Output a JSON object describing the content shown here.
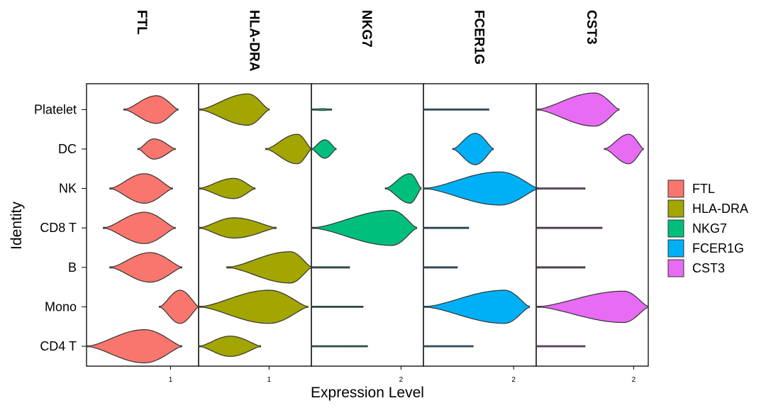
{
  "chart_data": {
    "type": "violin",
    "xlabel": "Expression Level",
    "ylabel": "Identity",
    "categories": [
      "CD4 T",
      "Mono",
      "B",
      "CD8 T",
      "NK",
      "DC",
      "Platelet"
    ],
    "legend_position": "right",
    "panels": [
      {
        "gene": "FTL",
        "color": "#F8766D",
        "xlim": [
          0.1,
          1.3
        ],
        "ticks": [
          1
        ],
        "violins": [
          {
            "cell": "CD4 T",
            "lo": 0.1,
            "hi": 1.12,
            "mode": 0.72,
            "w": 0.9
          },
          {
            "cell": "Mono",
            "lo": 0.88,
            "hi": 1.3,
            "mode": 1.1,
            "w": 0.9
          },
          {
            "cell": "B",
            "lo": 0.35,
            "hi": 1.12,
            "mode": 0.78,
            "w": 0.8
          },
          {
            "cell": "CD8 T",
            "lo": 0.28,
            "hi": 1.05,
            "mode": 0.72,
            "w": 0.85
          },
          {
            "cell": "NK",
            "lo": 0.35,
            "hi": 1.02,
            "mode": 0.72,
            "w": 0.8
          },
          {
            "cell": "DC",
            "lo": 0.65,
            "hi": 1.05,
            "mode": 0.82,
            "w": 0.55
          },
          {
            "cell": "Platelet",
            "lo": 0.5,
            "hi": 1.08,
            "mode": 0.85,
            "w": 0.75
          }
        ]
      },
      {
        "gene": "HLA-DRA",
        "color": "#A3A500",
        "xlim": [
          0,
          1.6
        ],
        "ticks": [
          1
        ],
        "violins": [
          {
            "cell": "CD4 T",
            "lo": 0,
            "hi": 0.88,
            "mode": 0.45,
            "w": 0.55
          },
          {
            "cell": "Mono",
            "lo": 0,
            "hi": 1.55,
            "mode": 1.0,
            "w": 0.9
          },
          {
            "cell": "B",
            "lo": 0.4,
            "hi": 1.6,
            "mode": 1.3,
            "w": 0.85
          },
          {
            "cell": "CD8 T",
            "lo": 0,
            "hi": 1.1,
            "mode": 0.5,
            "w": 0.55
          },
          {
            "cell": "NK",
            "lo": 0,
            "hi": 0.8,
            "mode": 0.5,
            "w": 0.55
          },
          {
            "cell": "DC",
            "lo": 0.95,
            "hi": 1.6,
            "mode": 1.4,
            "w": 0.8
          },
          {
            "cell": "Platelet",
            "lo": 0,
            "hi": 1.0,
            "mode": 0.7,
            "w": 0.85
          }
        ]
      },
      {
        "gene": "NKG7",
        "color": "#00BF7D",
        "xlim": [
          0,
          2.5
        ],
        "ticks": [
          2
        ],
        "violins": [
          {
            "cell": "CD4 T",
            "lo": 0,
            "hi": 1.25,
            "mode": 0.5,
            "w": 0.02
          },
          {
            "cell": "Mono",
            "lo": 0,
            "hi": 1.15,
            "mode": 0.5,
            "w": 0.02
          },
          {
            "cell": "B",
            "lo": 0,
            "hi": 0.85,
            "mode": 0.5,
            "w": 0.02
          },
          {
            "cell": "CD8 T",
            "lo": 0,
            "hi": 2.35,
            "mode": 1.8,
            "w": 0.95
          },
          {
            "cell": "NK",
            "lo": 1.65,
            "hi": 2.45,
            "mode": 2.2,
            "w": 0.8
          },
          {
            "cell": "DC",
            "lo": 0,
            "hi": 0.55,
            "mode": 0.3,
            "w": 0.5
          },
          {
            "cell": "Platelet",
            "lo": 0,
            "hi": 0.45,
            "mode": 0.25,
            "w": 0.05
          }
        ]
      },
      {
        "gene": "FCER1G",
        "color": "#00B0F6",
        "xlim": [
          0,
          2.5
        ],
        "ticks": [
          2
        ],
        "violins": [
          {
            "cell": "CD4 T",
            "lo": 0,
            "hi": 1.1,
            "mode": 0.5,
            "w": 0.02
          },
          {
            "cell": "Mono",
            "lo": 0,
            "hi": 2.35,
            "mode": 1.8,
            "w": 0.9
          },
          {
            "cell": "B",
            "lo": 0,
            "hi": 0.75,
            "mode": 0.4,
            "w": 0.02
          },
          {
            "cell": "CD8 T",
            "lo": 0,
            "hi": 1.0,
            "mode": 0.5,
            "w": 0.02
          },
          {
            "cell": "NK",
            "lo": 0,
            "hi": 2.55,
            "mode": 1.7,
            "w": 0.9
          },
          {
            "cell": "DC",
            "lo": 0.65,
            "hi": 1.55,
            "mode": 1.15,
            "w": 0.85
          },
          {
            "cell": "Platelet",
            "lo": 0,
            "hi": 1.45,
            "mode": 0.9,
            "w": 0.02
          }
        ]
      },
      {
        "gene": "CST3",
        "color": "#E76BF3",
        "xlim": [
          0,
          2.3
        ],
        "ticks": [
          2
        ],
        "violins": [
          {
            "cell": "CD4 T",
            "lo": 0,
            "hi": 1.0,
            "mode": 0.5,
            "w": 0.02
          },
          {
            "cell": "Mono",
            "lo": 0,
            "hi": 2.3,
            "mode": 1.8,
            "w": 0.85
          },
          {
            "cell": "B",
            "lo": 0,
            "hi": 1.0,
            "mode": 0.5,
            "w": 0.02
          },
          {
            "cell": "CD8 T",
            "lo": 0,
            "hi": 1.35,
            "mode": 0.6,
            "w": 0.02
          },
          {
            "cell": "NK",
            "lo": 0,
            "hi": 1.0,
            "mode": 0.5,
            "w": 0.02
          },
          {
            "cell": "DC",
            "lo": 1.4,
            "hi": 2.2,
            "mode": 1.9,
            "w": 0.8
          },
          {
            "cell": "Platelet",
            "lo": 0,
            "hi": 1.7,
            "mode": 1.2,
            "w": 0.9
          }
        ]
      }
    ]
  }
}
